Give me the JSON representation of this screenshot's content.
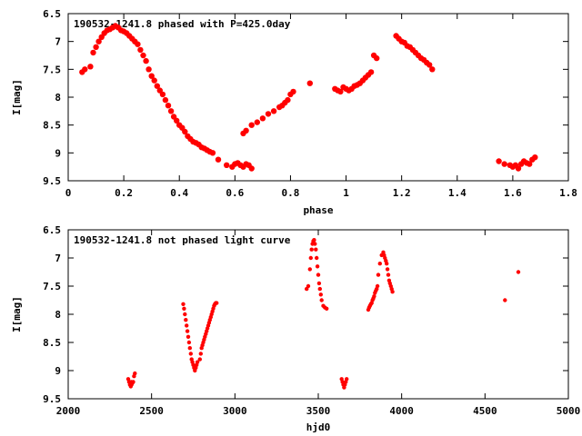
{
  "chart_data": [
    {
      "type": "scatter",
      "title": "190532-1241.8 phased with P=425.0day",
      "xlabel": "phase",
      "ylabel": "I[mag]",
      "xlim": [
        0,
        1.8
      ],
      "ylim": [
        9.5,
        6.5
      ],
      "y_inverted": true,
      "grid": false,
      "color": "#ff0000",
      "xticks": [
        "0",
        "0.2",
        "0.4",
        "0.6",
        "0.8",
        "1",
        "1.2",
        "1.4",
        "1.6",
        "1.8"
      ],
      "yticks": [
        "6.5",
        "7",
        "7.5",
        "8",
        "8.5",
        "9",
        "9.5"
      ],
      "series": [
        {
          "x": [
            0.05,
            0.06,
            0.08,
            0.09,
            0.1,
            0.11,
            0.12,
            0.13,
            0.14,
            0.15,
            0.16,
            0.17,
            0.18,
            0.19,
            0.2,
            0.21,
            0.22,
            0.23,
            0.24,
            0.25,
            0.26,
            0.27,
            0.28,
            0.29,
            0.3,
            0.31,
            0.32,
            0.33,
            0.34,
            0.35,
            0.36,
            0.37,
            0.38,
            0.39,
            0.4,
            0.41,
            0.42,
            0.43,
            0.44,
            0.45,
            0.46,
            0.47,
            0.48,
            0.49,
            0.5,
            0.51,
            0.52,
            0.54,
            0.57,
            0.59,
            0.6,
            0.61,
            0.62,
            0.63,
            0.64,
            0.65,
            0.66,
            0.63,
            0.64,
            0.66,
            0.68,
            0.7,
            0.72,
            0.74,
            0.76,
            0.77,
            0.78,
            0.79,
            0.8,
            0.81,
            0.87,
            0.96,
            0.97,
            0.98,
            0.99,
            1.0,
            1.01,
            1.02,
            1.03,
            1.04,
            1.05,
            1.06,
            1.07,
            1.08,
            1.09,
            1.1,
            1.11,
            1.18,
            1.19,
            1.2,
            1.21,
            1.22,
            1.23,
            1.24,
            1.25,
            1.26,
            1.27,
            1.28,
            1.29,
            1.3,
            1.31,
            1.55,
            1.57,
            1.59,
            1.6,
            1.61,
            1.62,
            1.63,
            1.64,
            1.65,
            1.66,
            1.67,
            1.68
          ],
          "y": [
            7.55,
            7.5,
            7.45,
            7.2,
            7.1,
            7.0,
            6.92,
            6.85,
            6.8,
            6.78,
            6.75,
            6.72,
            6.75,
            6.8,
            6.82,
            6.85,
            6.9,
            6.95,
            7.0,
            7.05,
            7.15,
            7.25,
            7.35,
            7.5,
            7.62,
            7.7,
            7.8,
            7.88,
            7.95,
            8.05,
            8.15,
            8.25,
            8.35,
            8.42,
            8.5,
            8.55,
            8.62,
            8.7,
            8.75,
            8.8,
            8.82,
            8.85,
            8.9,
            8.92,
            8.95,
            8.98,
            9.0,
            9.12,
            9.22,
            9.25,
            9.2,
            9.18,
            9.22,
            9.25,
            9.2,
            9.22,
            9.28,
            8.65,
            8.6,
            8.5,
            8.45,
            8.38,
            8.3,
            8.25,
            8.18,
            8.15,
            8.1,
            8.05,
            7.95,
            7.9,
            7.75,
            7.85,
            7.88,
            7.9,
            7.82,
            7.85,
            7.88,
            7.85,
            7.8,
            7.78,
            7.75,
            7.7,
            7.65,
            7.6,
            7.55,
            7.25,
            7.3,
            6.9,
            6.95,
            7.0,
            7.02,
            7.08,
            7.1,
            7.15,
            7.2,
            7.25,
            7.3,
            7.33,
            7.38,
            7.42,
            7.5,
            9.15,
            9.2,
            9.22,
            9.25,
            9.22,
            9.28,
            9.2,
            9.15,
            9.18,
            9.2,
            9.12,
            9.08
          ]
        }
      ]
    },
    {
      "type": "scatter",
      "title": "190532-1241.8 not phased light curve",
      "xlabel": "hjd0",
      "ylabel": "I[mag]",
      "xlim": [
        2000,
        5000
      ],
      "ylim": [
        9.5,
        6.5
      ],
      "y_inverted": true,
      "grid": false,
      "color": "#ff0000",
      "xticks": [
        "2000",
        "2500",
        "3000",
        "3500",
        "4000",
        "4500",
        "5000"
      ],
      "yticks": [
        "6.5",
        "7",
        "7.5",
        "8",
        "8.5",
        "9",
        "9.5"
      ],
      "series": [
        {
          "x": [
            2360,
            2365,
            2370,
            2372,
            2375,
            2378,
            2380,
            2385,
            2390,
            2395,
            2400,
            2690,
            2695,
            2700,
            2705,
            2710,
            2715,
            2720,
            2725,
            2730,
            2735,
            2740,
            2745,
            2750,
            2755,
            2760,
            2765,
            2770,
            2775,
            2790,
            2795,
            2800,
            2805,
            2810,
            2815,
            2820,
            2825,
            2830,
            2835,
            2840,
            2845,
            2850,
            2855,
            2860,
            2865,
            2870,
            2875,
            2880,
            2885,
            2890,
            3430,
            3440,
            3450,
            3455,
            3460,
            3465,
            3470,
            3475,
            3480,
            3485,
            3490,
            3495,
            3500,
            3505,
            3510,
            3515,
            3520,
            3530,
            3540,
            3550,
            3640,
            3645,
            3650,
            3655,
            3660,
            3665,
            3670,
            3800,
            3805,
            3810,
            3815,
            3820,
            3825,
            3830,
            3835,
            3840,
            3845,
            3850,
            3855,
            3860,
            3870,
            3880,
            3890,
            3895,
            3900,
            3905,
            3910,
            3915,
            3920,
            3925,
            3930,
            3935,
            3940,
            3945,
            4620,
            4700
          ],
          "y": [
            9.15,
            9.2,
            9.25,
            9.22,
            9.28,
            9.2,
            9.25,
            9.22,
            9.2,
            9.1,
            9.05,
            7.82,
            7.9,
            8.0,
            8.1,
            8.2,
            8.3,
            8.4,
            8.5,
            8.6,
            8.7,
            8.8,
            8.85,
            8.9,
            8.95,
            9.0,
            8.95,
            8.9,
            8.85,
            8.8,
            8.7,
            8.6,
            8.55,
            8.5,
            8.45,
            8.4,
            8.35,
            8.3,
            8.25,
            8.2,
            8.15,
            8.1,
            8.05,
            8.0,
            7.95,
            7.9,
            7.85,
            7.82,
            7.8,
            7.8,
            7.55,
            7.5,
            7.2,
            7.0,
            6.85,
            6.75,
            6.7,
            6.68,
            6.75,
            6.85,
            7.0,
            7.15,
            7.3,
            7.45,
            7.55,
            7.65,
            7.75,
            7.85,
            7.88,
            7.9,
            9.15,
            9.2,
            9.25,
            9.3,
            9.25,
            9.2,
            9.15,
            7.92,
            7.88,
            7.85,
            7.82,
            7.8,
            7.75,
            7.72,
            7.68,
            7.62,
            7.58,
            7.55,
            7.5,
            7.3,
            7.1,
            6.95,
            6.9,
            6.95,
            7.0,
            7.05,
            7.1,
            7.2,
            7.3,
            7.4,
            7.45,
            7.5,
            7.55,
            7.6,
            7.75,
            7.25
          ]
        }
      ]
    }
  ]
}
